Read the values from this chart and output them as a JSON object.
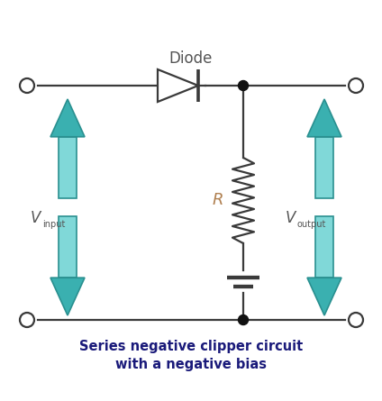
{
  "title_top": "Diode",
  "title_bottom_line1": "Series negative clipper circuit",
  "title_bottom_line2": "with a negative bias",
  "bg_color": "#ffffff",
  "wire_color": "#3a3a3a",
  "dot_color": "#111111",
  "arrow_color_light": "#80d8d8",
  "arrow_color_dark": "#3ab0b0",
  "arrow_outline": "#2a9090",
  "label_color": "#555555",
  "title_color": "#555555",
  "bottom_title_color": "#1a1a7a",
  "R_label_color": "#b08050",
  "fig_width": 4.24,
  "fig_height": 4.45,
  "dpi": 100
}
